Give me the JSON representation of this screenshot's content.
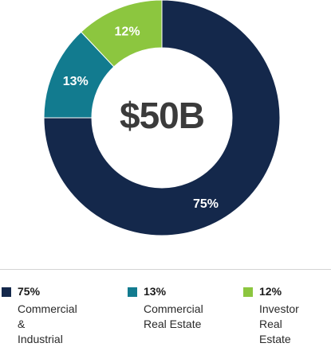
{
  "chart_data": {
    "type": "pie",
    "style": "donut",
    "center_label": "$50B",
    "slices": [
      {
        "label_line1": "Commercial &",
        "label_line2": "Industrial",
        "value": 75,
        "display": "75%",
        "color": "#14284b"
      },
      {
        "label_line1": "Commercial",
        "label_line2": "Real Estate",
        "value": 13,
        "display": "13%",
        "color": "#127b8f"
      },
      {
        "label_line1": "Investor Real",
        "label_line2": "Estate",
        "value": 12,
        "display": "12%",
        "color": "#8cc63f"
      }
    ],
    "legend_placement": "bottom"
  }
}
